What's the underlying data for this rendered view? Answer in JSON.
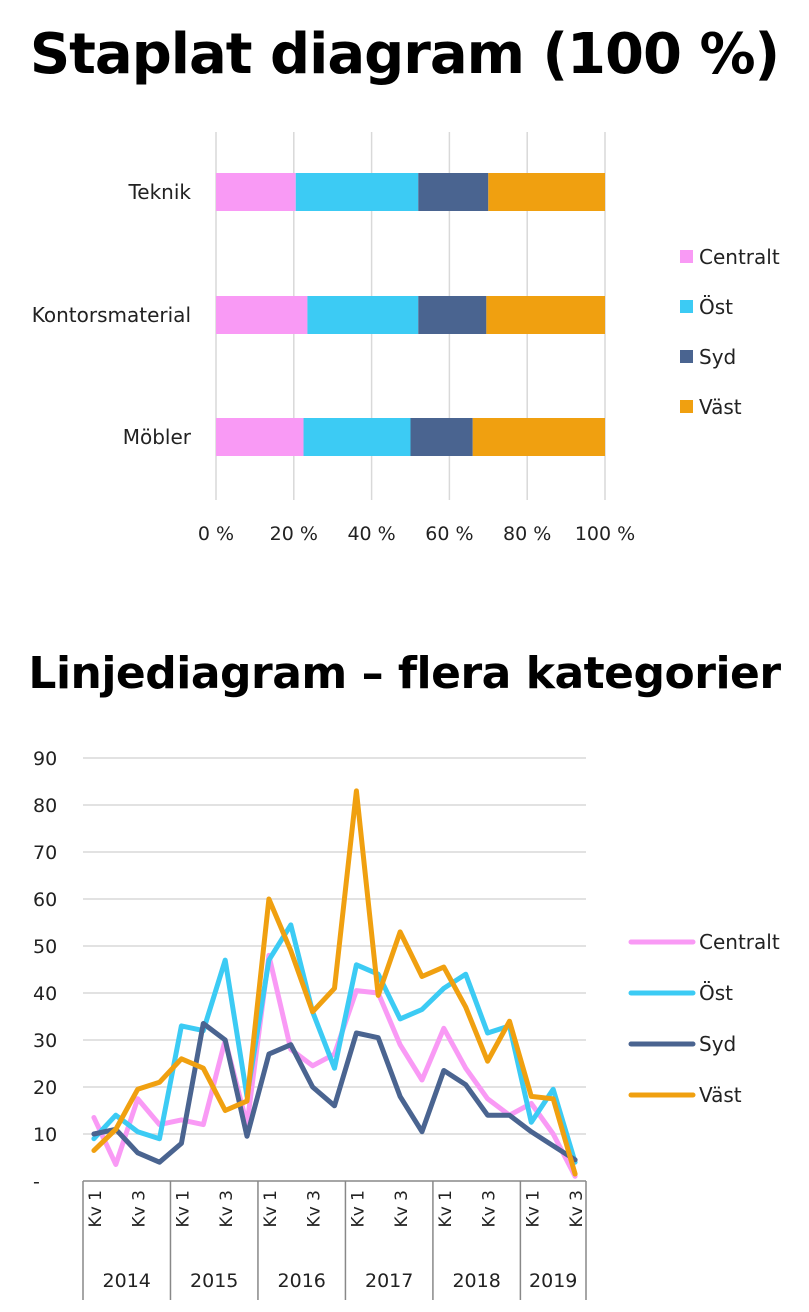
{
  "chart_data": [
    {
      "type": "bar",
      "stacked": "percent",
      "orientation": "horizontal",
      "title": "Staplat diagram (100 %)",
      "categories": [
        "Teknik",
        "Kontorsmaterial",
        "Möbler"
      ],
      "series": [
        {
          "name": "Centralt",
          "color": "#F99AF5",
          "values": [
            20.5,
            23.5,
            22.5
          ]
        },
        {
          "name": "Öst",
          "color": "#3CCBF4",
          "values": [
            31.5,
            28.5,
            27.5
          ]
        },
        {
          "name": "Syd",
          "color": "#4A6490",
          "values": [
            18,
            17.5,
            16
          ]
        },
        {
          "name": "Väst",
          "color": "#F0A010",
          "values": [
            30,
            30.5,
            34
          ]
        }
      ],
      "xlim": [
        0,
        100
      ],
      "xticks": [
        "0 %",
        "20 %",
        "40 %",
        "60 %",
        "80 %",
        "100 %"
      ],
      "grid": "vertical",
      "legend": "right"
    },
    {
      "type": "line",
      "title": "Linjediagram – flera kategorier",
      "x": [
        "2014 Kv 1",
        "2014 Kv 2",
        "2014 Kv 3",
        "2014 Kv 4",
        "2015 Kv 1",
        "2015 Kv 2",
        "2015 Kv 3",
        "2015 Kv 4",
        "2016 Kv 1",
        "2016 Kv 2",
        "2016 Kv 3",
        "2016 Kv 4",
        "2017 Kv 1",
        "2017 Kv 2",
        "2017 Kv 3",
        "2017 Kv 4",
        "2018 Kv 1",
        "2018 Kv 2",
        "2018 Kv 3",
        "2018 Kv 4",
        "2019 Kv 1",
        "2019 Kv 2",
        "2019 Kv 3"
      ],
      "x_tick_labels": [
        "Kv 1",
        "Kv 3"
      ],
      "x_group_labels": [
        "2014",
        "2015",
        "2016",
        "2017",
        "2018",
        "2019"
      ],
      "y_tick_labels": [
        "-",
        "10",
        "20",
        "30",
        "40",
        "50",
        "60",
        "70",
        "80",
        "90"
      ],
      "ylim": [
        0,
        90
      ],
      "grid": "horizontal",
      "legend": "right",
      "series": [
        {
          "name": "Centralt",
          "color": "#F99AF5",
          "values": [
            13.5,
            3.5,
            17.5,
            12,
            13,
            12,
            30,
            12,
            48,
            28,
            24.5,
            27,
            40.5,
            40,
            29,
            21.5,
            32.5,
            24,
            17.5,
            14,
            16.5,
            10,
            1
          ]
        },
        {
          "name": "Öst",
          "color": "#3CCBF4",
          "values": [
            9,
            14,
            10.5,
            9,
            33,
            32,
            47,
            18,
            47,
            54.5,
            36,
            24,
            46,
            44,
            34.5,
            36.5,
            41,
            44,
            31.5,
            33,
            12.5,
            19.5,
            4
          ]
        },
        {
          "name": "Syd",
          "color": "#4A6490",
          "values": [
            10,
            11,
            6,
            4,
            8,
            33.5,
            30,
            9.5,
            27,
            29,
            20,
            16,
            31.5,
            30.5,
            18,
            10.5,
            23.5,
            20.5,
            14,
            14,
            10.5,
            7.5,
            4.5
          ]
        },
        {
          "name": "Väst",
          "color": "#F0A010",
          "values": [
            6.5,
            11,
            19.5,
            21,
            26,
            24,
            15,
            17,
            60,
            49,
            36,
            41,
            83,
            39.5,
            53,
            43.5,
            45.5,
            37,
            25.5,
            34,
            18,
            17.5,
            1.5
          ]
        }
      ]
    }
  ]
}
